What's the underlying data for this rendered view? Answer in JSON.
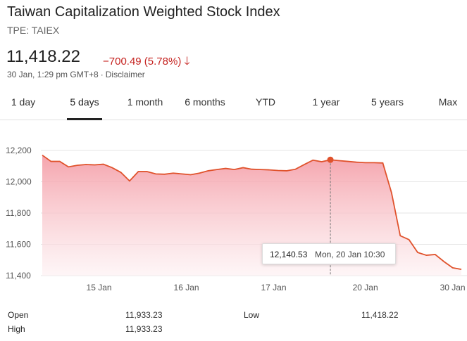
{
  "header": {
    "title": "Taiwan Capitalization Weighted Stock Index",
    "ticker": "TPE: TAIEX",
    "price": "11,418.22",
    "change": "−700.49 (5.78%)",
    "change_arrow": "🡓",
    "timestamp": "30 Jan, 1:29 pm GMT+8",
    "separator": "·",
    "disclaimer": "Disclaimer"
  },
  "tabs": [
    {
      "label": "1 day"
    },
    {
      "label": "5 days"
    },
    {
      "label": "1 month"
    },
    {
      "label": "6 months"
    },
    {
      "label": "YTD"
    },
    {
      "label": "1 year"
    },
    {
      "label": "5 years"
    },
    {
      "label": "Max"
    }
  ],
  "active_tab": "5 days",
  "colors": {
    "line": "#e0522c",
    "fill_top": "#f49aa4",
    "fill_bottom": "#fdeff1",
    "grid": "#e6e6e6",
    "negative": "#c5221f"
  },
  "chart_data": {
    "type": "area",
    "ylim": [
      11400,
      12200
    ],
    "y_ticks": [
      12200,
      12000,
      11800,
      11600,
      11400
    ],
    "y_tick_labels": [
      "12,200",
      "12,000",
      "11,800",
      "11,600",
      "11,400"
    ],
    "x_tick_labels": [
      "15 Jan",
      "16 Jan",
      "17 Jan",
      "20 Jan",
      "30 Jan"
    ],
    "x_tick_index": [
      6.5,
      16.5,
      26.5,
      37,
      47
    ],
    "points": [
      12170,
      12130,
      12130,
      12095,
      12105,
      12110,
      12108,
      12112,
      12090,
      12060,
      12005,
      12065,
      12065,
      12050,
      12048,
      12055,
      12050,
      12045,
      12055,
      12070,
      12078,
      12085,
      12078,
      12090,
      12080,
      12078,
      12076,
      12072,
      12070,
      12080,
      12110,
      12138,
      12128,
      12140.53,
      12135,
      12130,
      12125,
      12122,
      12122,
      12120,
      11930,
      11655,
      11630,
      11548,
      11530,
      11535,
      11490,
      11450,
      11440
    ],
    "highlight_index": 33,
    "tooltip": {
      "value": "12,140.53",
      "date": "Mon, 20 Jan 10:30"
    }
  },
  "stats": {
    "open_label": "Open",
    "open_value": "11,933.23",
    "high_label": "High",
    "high_value": "11,933.23",
    "low_label": "Low",
    "low_value": "11,418.22"
  }
}
